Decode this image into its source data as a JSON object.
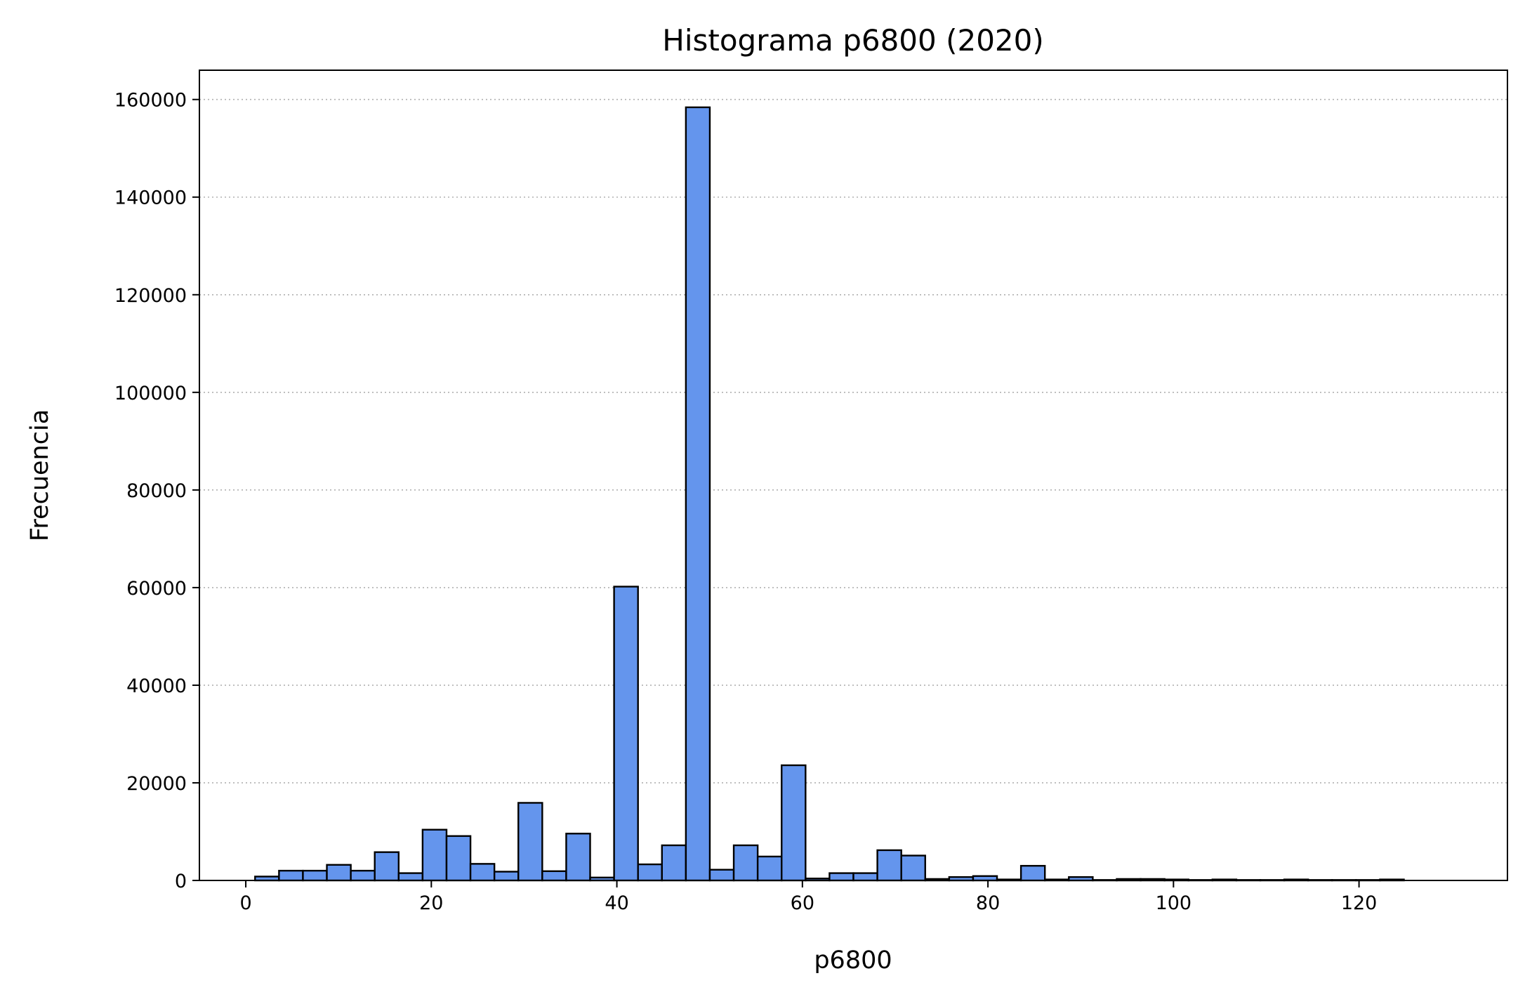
{
  "chart_data": {
    "type": "bar",
    "title": "Histograma p6800 (2020)",
    "xlabel": "p6800",
    "ylabel": "Frecuencia",
    "xlim": [
      -5,
      136
    ],
    "ylim": [
      0,
      166000
    ],
    "xticks": [
      0,
      20,
      40,
      60,
      80,
      100,
      120
    ],
    "yticks": [
      0,
      20000,
      40000,
      60000,
      80000,
      100000,
      120000,
      140000,
      160000
    ],
    "grid": "y-dotted",
    "bin_start": 1,
    "bin_width": 2.58,
    "bin_count": 48,
    "values": [
      800,
      2000,
      2000,
      3200,
      2000,
      5800,
      1500,
      10400,
      9100,
      3400,
      1800,
      15900,
      1900,
      9600,
      600,
      60200,
      3300,
      7200,
      158400,
      2200,
      7200,
      4900,
      23600,
      400,
      1500,
      1500,
      6200,
      5100,
      300,
      700,
      900,
      200,
      3000,
      200,
      700,
      100,
      300,
      300,
      200,
      100,
      200,
      100,
      100,
      200,
      100,
      100,
      100,
      200
    ],
    "colors": {
      "bar_fill": "#6495ED",
      "bar_edge": "#000000",
      "grid": "#b0b0b0"
    }
  }
}
